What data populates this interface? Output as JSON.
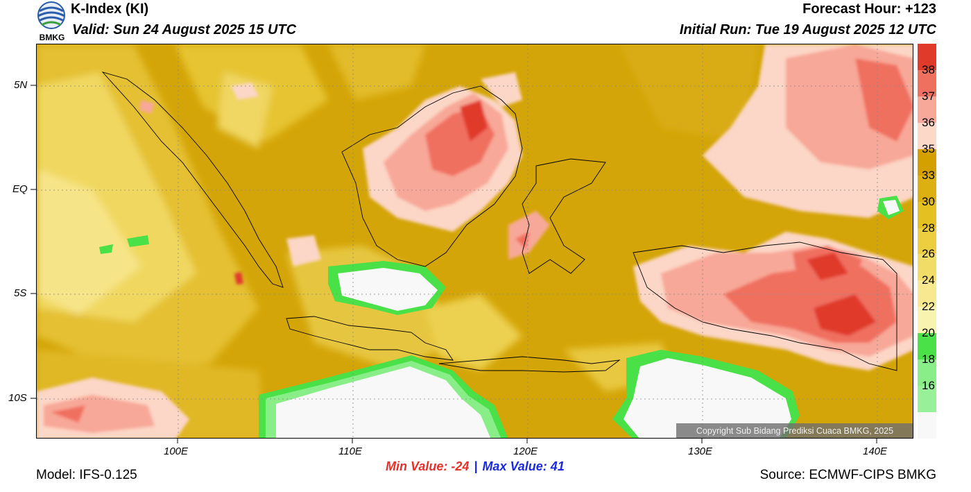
{
  "header": {
    "title": "K-Index (KI)",
    "valid": "Valid: Sun 24 August 2025 15 UTC",
    "forecast_hour": "Forecast Hour: +123",
    "initial_run": "Initial Run: Tue 19 August 2025 12 UTC",
    "logo_text": "BMKG"
  },
  "map": {
    "lat_labels": [
      "5N",
      "EQ",
      "5S",
      "10S"
    ],
    "lon_labels": [
      "100E",
      "110E",
      "120E",
      "130E",
      "140E"
    ],
    "copyright": "Copyright Sub Bidang Prediksi Cuaca BMKG, 2025"
  },
  "colorbar": {
    "labels": [
      "38",
      "37",
      "36",
      "35",
      "33",
      "30",
      "28",
      "26",
      "24",
      "22",
      "20",
      "18",
      "16"
    ],
    "colors": [
      "#e03a2a",
      "#f07060",
      "#f8a898",
      "#fcd8c8",
      "#d4a000",
      "#dcb010",
      "#e4c020",
      "#ecce40",
      "#f2dc68",
      "#f8e890",
      "#f8f4b0",
      "#4ae048",
      "#8aee88",
      "#98f098",
      "#f8f8f8"
    ]
  },
  "footer": {
    "min_value": "Min Value: -24",
    "separator": "|",
    "max_value": "Max Value:  41",
    "model": "Model: IFS-0.125",
    "source": "Source: ECMWF-CIPS BMKG"
  }
}
